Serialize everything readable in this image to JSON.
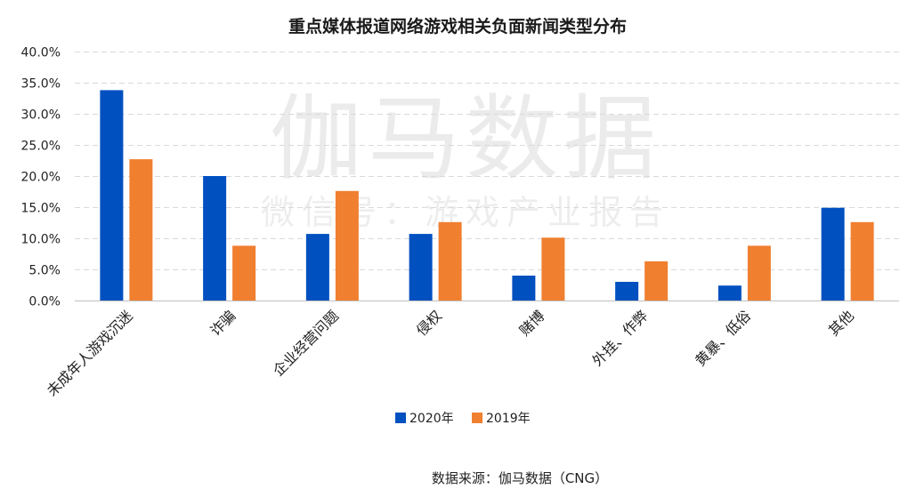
{
  "title": "重点媒体报道网络游戏相关负面新闻类型分布",
  "watermark": {
    "line1": "伽马数据",
    "line2": "微信号：游戏产业报告"
  },
  "source": "数据来源：伽马数据（CNG）",
  "chart_data": {
    "type": "bar",
    "title": "重点媒体报道网络游戏相关负面新闻类型分布",
    "categories": [
      "未成年人游戏沉迷",
      "诈骗",
      "企业经营问题",
      "侵权",
      "赌博",
      "外挂、作弊",
      "黄暴、低俗",
      "其他"
    ],
    "series": [
      {
        "name": "2020年",
        "color": "#0050c0",
        "values": [
          33.8,
          20.0,
          10.7,
          10.7,
          4.0,
          3.0,
          2.4,
          14.9
        ]
      },
      {
        "name": "2019年",
        "color": "#f07f30",
        "values": [
          22.7,
          8.8,
          17.6,
          12.6,
          10.1,
          6.3,
          8.8,
          12.6
        ]
      }
    ],
    "ylim": [
      0,
      40
    ],
    "yticks": [
      0,
      5,
      10,
      15,
      20,
      25,
      30,
      35,
      40
    ],
    "ytick_labels": [
      "0.0%",
      "5.0%",
      "10.0%",
      "15.0%",
      "20.0%",
      "25.0%",
      "30.0%",
      "35.0%",
      "40.0%"
    ],
    "grid": true,
    "legend_position": "bottom-center",
    "xlabel": "",
    "ylabel": ""
  }
}
